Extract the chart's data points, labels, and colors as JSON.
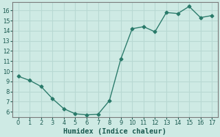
{
  "x": [
    0,
    1,
    2,
    3,
    4,
    5,
    6,
    7,
    8,
    9,
    10,
    11,
    12,
    13,
    14,
    15,
    16,
    17
  ],
  "y": [
    9.5,
    9.1,
    8.5,
    7.3,
    6.3,
    5.8,
    5.7,
    5.75,
    7.1,
    11.2,
    14.2,
    14.4,
    13.9,
    15.8,
    15.7,
    16.4,
    15.3,
    15.5
  ],
  "line_color": "#2a7a6a",
  "marker": "D",
  "marker_size": 2.5,
  "bg_color": "#ceeae4",
  "grid_color": "#b8d8d2",
  "xlabel": "Humidex (Indice chaleur)",
  "ylim": [
    5.5,
    16.8
  ],
  "xlim": [
    -0.5,
    17.5
  ],
  "yticks": [
    6,
    7,
    8,
    9,
    10,
    11,
    12,
    13,
    14,
    15,
    16
  ],
  "xticks": [
    0,
    1,
    2,
    3,
    4,
    5,
    6,
    7,
    8,
    9,
    10,
    11,
    12,
    13,
    14,
    15,
    16,
    17
  ],
  "tick_fontsize": 6,
  "xlabel_fontsize": 7.5,
  "line_width": 1.0
}
